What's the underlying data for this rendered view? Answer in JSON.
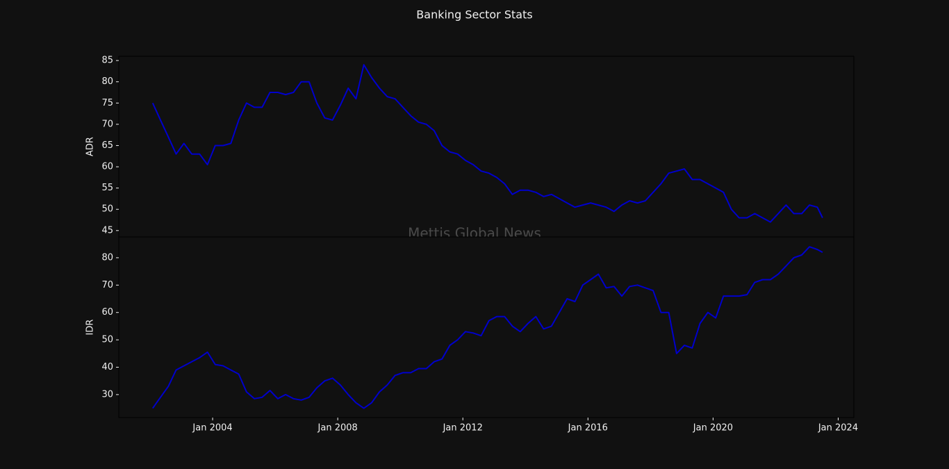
{
  "chart_data": [
    {
      "type": "line",
      "title": "Banking Sector Stats",
      "annotation": "Mettis Global News",
      "ylabel": "ADR",
      "x": [
        "2002-02",
        "2002-05",
        "2002-08",
        "2002-11",
        "2003-02",
        "2003-05",
        "2003-08",
        "2003-11",
        "2004-02",
        "2004-05",
        "2004-08",
        "2004-11",
        "2005-02",
        "2005-05",
        "2005-08",
        "2005-11",
        "2006-02",
        "2006-05",
        "2006-08",
        "2006-11",
        "2007-02",
        "2007-05",
        "2007-08",
        "2007-11",
        "2008-02",
        "2008-05",
        "2008-08",
        "2008-11",
        "2009-02",
        "2009-05",
        "2009-08",
        "2009-11",
        "2010-02",
        "2010-05",
        "2010-08",
        "2010-11",
        "2011-02",
        "2011-05",
        "2011-08",
        "2011-11",
        "2012-02",
        "2012-05",
        "2012-08",
        "2012-11",
        "2013-02",
        "2013-05",
        "2013-08",
        "2013-11",
        "2014-02",
        "2014-05",
        "2014-08",
        "2014-11",
        "2015-02",
        "2015-05",
        "2015-08",
        "2015-11",
        "2016-02",
        "2016-05",
        "2016-08",
        "2016-11",
        "2017-02",
        "2017-05",
        "2017-08",
        "2017-11",
        "2018-02",
        "2018-05",
        "2018-08",
        "2018-11",
        "2019-02",
        "2019-05",
        "2019-08",
        "2019-11",
        "2020-02",
        "2020-05",
        "2020-08",
        "2020-11",
        "2021-02",
        "2021-05",
        "2021-08",
        "2021-11",
        "2022-02",
        "2022-05",
        "2022-08",
        "2022-11",
        "2023-02",
        "2023-05",
        "2023-07"
      ],
      "series": [
        {
          "color": "#0000cd",
          "values": [
            75,
            71,
            67,
            63,
            65.5,
            63,
            63,
            60.5,
            65,
            65,
            65.5,
            71,
            75,
            74,
            74,
            77.5,
            77.5,
            77,
            77.5,
            80,
            80,
            75,
            71.5,
            71,
            74.5,
            78.5,
            76,
            84,
            81,
            78.5,
            76.5,
            76,
            74,
            72,
            70.5,
            70,
            68.5,
            65,
            63.5,
            63,
            61.5,
            60.5,
            59,
            58.5,
            57.5,
            56,
            53.5,
            54.5,
            54.5,
            54,
            53,
            53.5,
            52.5,
            51.5,
            50.5,
            51,
            51.5,
            51,
            50.5,
            49.5,
            51,
            52,
            51.5,
            52,
            54,
            56,
            58.5,
            59,
            59.5,
            57,
            57,
            56,
            55,
            54,
            50,
            48,
            48,
            49,
            48,
            47,
            49,
            51,
            49,
            49,
            51,
            50.5,
            48
          ]
        }
      ],
      "xlim": [
        "2001-01",
        "2024-07"
      ],
      "ylim": [
        43.5,
        86
      ],
      "yticks": [
        45,
        50,
        55,
        60,
        65,
        70,
        75,
        80,
        85
      ]
    },
    {
      "type": "line",
      "ylabel": "IDR",
      "x": [
        "2002-02",
        "2002-05",
        "2002-08",
        "2002-11",
        "2003-02",
        "2003-05",
        "2003-08",
        "2003-11",
        "2004-02",
        "2004-05",
        "2004-08",
        "2004-11",
        "2005-02",
        "2005-05",
        "2005-08",
        "2005-11",
        "2006-02",
        "2006-05",
        "2006-08",
        "2006-11",
        "2007-02",
        "2007-05",
        "2007-08",
        "2007-11",
        "2008-02",
        "2008-05",
        "2008-08",
        "2008-11",
        "2009-02",
        "2009-05",
        "2009-08",
        "2009-11",
        "2010-02",
        "2010-05",
        "2010-08",
        "2010-11",
        "2011-02",
        "2011-05",
        "2011-08",
        "2011-11",
        "2012-02",
        "2012-05",
        "2012-08",
        "2012-11",
        "2013-02",
        "2013-05",
        "2013-08",
        "2013-11",
        "2014-02",
        "2014-05",
        "2014-08",
        "2014-11",
        "2015-02",
        "2015-05",
        "2015-08",
        "2015-11",
        "2016-02",
        "2016-05",
        "2016-08",
        "2016-11",
        "2017-02",
        "2017-05",
        "2017-08",
        "2017-11",
        "2018-02",
        "2018-05",
        "2018-08",
        "2018-11",
        "2019-02",
        "2019-05",
        "2019-08",
        "2019-11",
        "2020-02",
        "2020-05",
        "2020-08",
        "2020-11",
        "2021-02",
        "2021-05",
        "2021-08",
        "2021-11",
        "2022-02",
        "2022-05",
        "2022-08",
        "2022-11",
        "2023-02",
        "2023-05",
        "2023-07"
      ],
      "series": [
        {
          "color": "#0000cd",
          "values": [
            25,
            29,
            33,
            39,
            40.5,
            42,
            43.5,
            45.5,
            41,
            40.5,
            39,
            37.5,
            31,
            28.5,
            29,
            31.5,
            28.5,
            30,
            28.5,
            28,
            29,
            32.5,
            35,
            36,
            33.5,
            30,
            27,
            25,
            27,
            31,
            33.5,
            37,
            38,
            38,
            39.5,
            39.5,
            42,
            43,
            48,
            50,
            53,
            52.5,
            51.5,
            57,
            58.5,
            58.5,
            55,
            53,
            56,
            58.5,
            54,
            55,
            60,
            65,
            64,
            70,
            72,
            74,
            69,
            69.5,
            66,
            69.5,
            70,
            69,
            68,
            60,
            60,
            45,
            48,
            47,
            56,
            60,
            58,
            66,
            66,
            66,
            66.5,
            71,
            72,
            72,
            74,
            77,
            80,
            81,
            84,
            83,
            82
          ]
        }
      ],
      "xlim": [
        "2001-01",
        "2024-07"
      ],
      "xticks": [
        {
          "value": "2004-01",
          "label": "Jan 2004"
        },
        {
          "value": "2008-01",
          "label": "Jan 2008"
        },
        {
          "value": "2012-01",
          "label": "Jan 2012"
        },
        {
          "value": "2016-01",
          "label": "Jan 2016"
        },
        {
          "value": "2020-01",
          "label": "Jan 2020"
        },
        {
          "value": "2024-01",
          "label": "Jan 2024"
        }
      ],
      "ylim": [
        21.6,
        87.6
      ],
      "yticks": [
        30,
        40,
        50,
        60,
        70,
        80
      ]
    }
  ]
}
